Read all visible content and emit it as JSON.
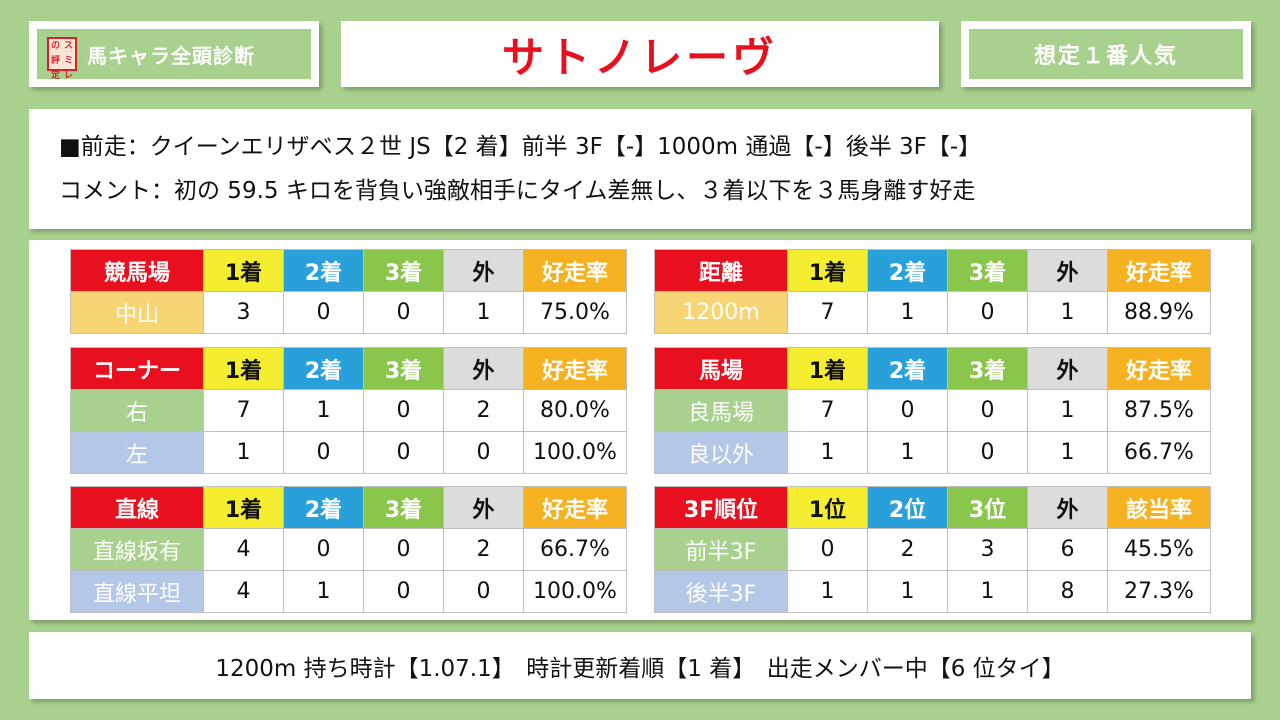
{
  "header": {
    "logo_chars": [
      "ス",
      "ミ",
      "レ",
      "の",
      "評",
      "定"
    ],
    "section_title": "馬キャラ全頭診断",
    "horse_name": "サトノレーヴ",
    "popularity": "想定１番人気"
  },
  "info": {
    "last_race": "■前走：クイーンエリザベス２世 JS【2 着】前半 3F【-】1000m 通過【-】後半 3F【-】",
    "comment": "コメント：初の 59.5 キロを背負い強敵相手にタイム差無し、３着以下を３馬身離す好走"
  },
  "tables": {
    "course": {
      "headers": [
        "競馬場",
        "1着",
        "2着",
        "3着",
        "外",
        "好走率"
      ],
      "rows": [
        [
          "中山",
          "3",
          "0",
          "0",
          "1",
          "75.0%"
        ]
      ]
    },
    "distance": {
      "headers": [
        "距離",
        "1着",
        "2着",
        "3着",
        "外",
        "好走率"
      ],
      "rows": [
        [
          "1200m",
          "7",
          "1",
          "0",
          "1",
          "88.9%"
        ]
      ]
    },
    "corner": {
      "headers": [
        "コーナー",
        "1着",
        "2着",
        "3着",
        "外",
        "好走率"
      ],
      "rows": [
        [
          "右",
          "7",
          "1",
          "0",
          "2",
          "80.0%"
        ],
        [
          "左",
          "1",
          "0",
          "0",
          "0",
          "100.0%"
        ]
      ]
    },
    "track": {
      "headers": [
        "馬場",
        "1着",
        "2着",
        "3着",
        "外",
        "好走率"
      ],
      "rows": [
        [
          "良馬場",
          "7",
          "0",
          "0",
          "1",
          "87.5%"
        ],
        [
          "良以外",
          "1",
          "1",
          "0",
          "1",
          "66.7%"
        ]
      ]
    },
    "straight": {
      "headers": [
        "直線",
        "1着",
        "2着",
        "3着",
        "外",
        "好走率"
      ],
      "rows": [
        [
          "直線坂有",
          "4",
          "0",
          "0",
          "2",
          "66.7%"
        ],
        [
          "直線平坦",
          "4",
          "1",
          "0",
          "0",
          "100.0%"
        ]
      ]
    },
    "rank3f": {
      "headers": [
        "3F順位",
        "1位",
        "2位",
        "3位",
        "外",
        "該当率"
      ],
      "rows": [
        [
          "前半3F",
          "0",
          "2",
          "3",
          "6",
          "45.5%"
        ],
        [
          "後半3F",
          "1",
          "1",
          "1",
          "8",
          "27.3%"
        ]
      ]
    }
  },
  "footer": {
    "text": "1200m 持ち時計【1.07.1】　時計更新着順【1 着】　出走メンバー中【6 位タイ】"
  }
}
